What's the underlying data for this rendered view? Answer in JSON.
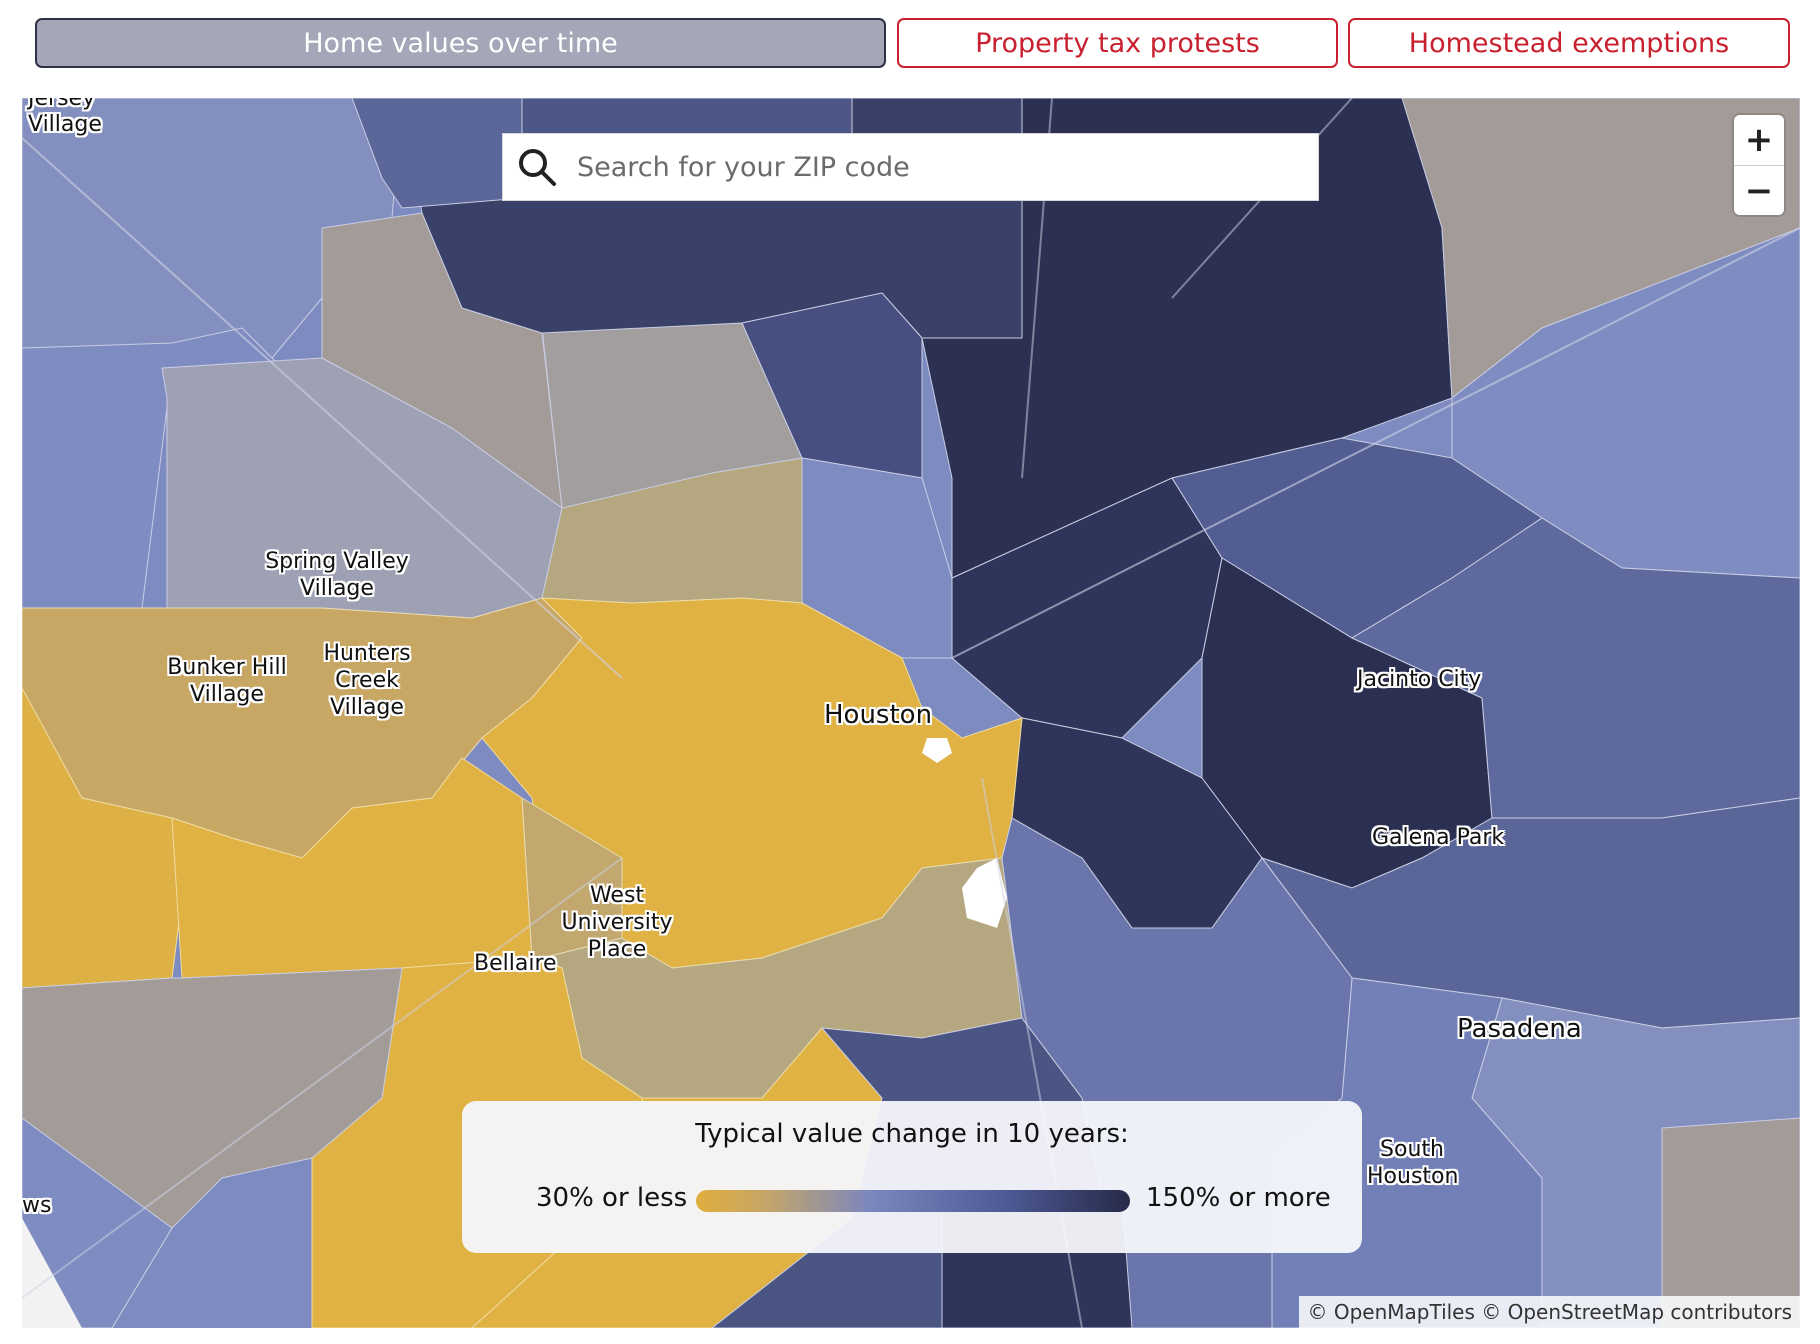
{
  "tabs": [
    {
      "label": "Home values over time",
      "active": true
    },
    {
      "label": "Property tax protests",
      "active": false
    },
    {
      "label": "Homestead exemptions",
      "active": false
    }
  ],
  "search": {
    "placeholder": "Search for your ZIP code",
    "icon": "search-icon"
  },
  "zoom": {
    "in_label": "+",
    "out_label": "−"
  },
  "places": {
    "jersey_village": "Jersey Village",
    "spring_valley_village": "Spring Valley Village",
    "bunker_hill_village": "Bunker Hill Village",
    "hunters_creek_village": "Hunters Creek Village",
    "houston": "Houston",
    "west_university_place": "West University Place",
    "bellaire": "Bellaire",
    "jacinto_city": "Jacinto City",
    "galena_park": "Galena Park",
    "pasadena": "Pasadena",
    "south_houston": "South Houston",
    "edge_fragment": "ws"
  },
  "legend": {
    "title": "Typical value change in 10 years:",
    "min_label": "30% or less",
    "max_label": "150% or more",
    "colors": [
      "#e0ae3c",
      "#c8a765",
      "#7b87bd",
      "#4f5c98",
      "#262a48"
    ]
  },
  "attribution": "© OpenMapTiles © OpenStreetMap contributors",
  "colors": {
    "accent_red": "#c9202f",
    "active_tab": "#a5a7b8",
    "gold": "#e0b143",
    "tan": "#b5a77f",
    "gray": "#a39b98",
    "light_blue": "#7d8bc1",
    "mid_blue": "#5b6699",
    "dark_navy": "#2e3356"
  }
}
